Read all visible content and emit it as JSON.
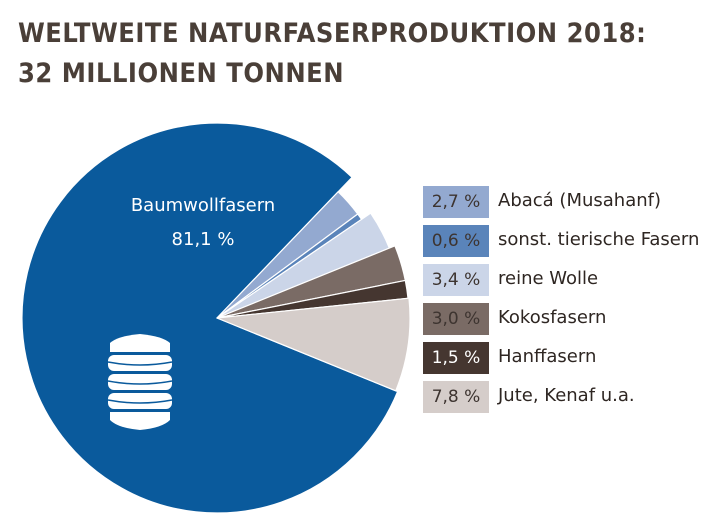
{
  "title": {
    "line1": "WELTWEITE NATURFASERPRODUKTION 2018:",
    "line2": "32 MILLIONEN TONNEN"
  },
  "chart_data": {
    "type": "pie",
    "slices": [
      {
        "label": "Baumwollfasern",
        "value": 81.1,
        "display": "81,1 %",
        "color": "#0a5a9c"
      },
      {
        "label": "Abacá (Musahanf)",
        "value": 2.7,
        "display": "2,7 %",
        "color": "#93a9d0"
      },
      {
        "label": "sonst. tierische Fasern",
        "value": 0.6,
        "display": "0,6 %",
        "color": "#5a84ba"
      },
      {
        "label": "reine Wolle",
        "value": 3.4,
        "display": "3,4 %",
        "color": "#cbd5e8"
      },
      {
        "label": "Kokosfasern",
        "value": 3.0,
        "display": "3,0 %",
        "color": "#7a6b65"
      },
      {
        "label": "Hanffasern",
        "value": 1.5,
        "display": "1,5 %",
        "color": "#453630"
      },
      {
        "label": "Jute, Kenaf u.a.",
        "value": 7.8,
        "display": "7,8 %",
        "color": "#d5cdca"
      }
    ]
  },
  "icon": "cotton-bale-icon"
}
